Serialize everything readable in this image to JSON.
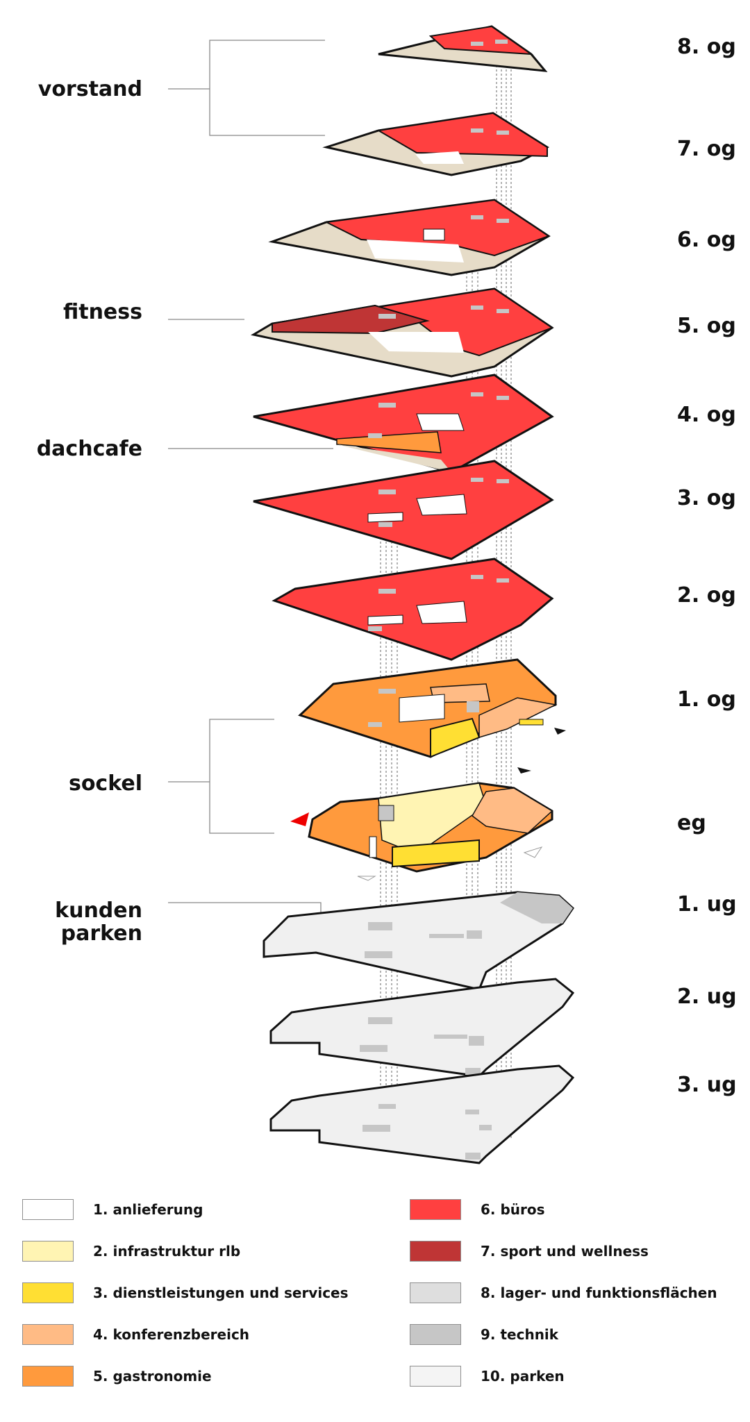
{
  "floors": {
    "og8": "8. og",
    "og7": "7. og",
    "og6": "6. og",
    "og5": "5. og",
    "og4": "4. og",
    "og3": "3. og",
    "og2": "2. og",
    "og1": "1. og",
    "eg": "eg",
    "ug1": "1. ug",
    "ug2": "2. ug",
    "ug3": "3. ug"
  },
  "sections": {
    "vorstand": "vorstand",
    "fitness": "fitness",
    "dachcafe": "dachcafe",
    "sockel": "sockel",
    "kunden_parken": "kunden\nparken"
  },
  "legend": [
    {
      "label": "1. anlieferung",
      "color": "#ffffff"
    },
    {
      "label": "2. infrastruktur rlb",
      "color": "#fff4b3"
    },
    {
      "label": "3. dienstleistungen und services",
      "color": "#ffdf33"
    },
    {
      "label": "4. konferenzbereich",
      "color": "#ffbb85"
    },
    {
      "label": "5. gastronomie",
      "color": "#ff9a3d"
    },
    {
      "label": "6. büros",
      "color": "#ff4040"
    },
    {
      "label": "7. sport und wellness",
      "color": "#bf3535"
    },
    {
      "label": "8. lager- und funktionsflächen",
      "color": "#dedede"
    },
    {
      "label": "9. technik",
      "color": "#c6c6c6"
    },
    {
      "label": "10. parken",
      "color": "#f4f4f4"
    }
  ],
  "colors": {
    "red_office": "#ff4040",
    "dark_red": "#bf3535",
    "beige_terrace": "#e6dcc8",
    "orange": "#ff9a3d",
    "light_orange": "#ffbb85",
    "yellow": "#ffdf33",
    "pale_yellow": "#fff4b3",
    "parking_grey": "#f0f0f0",
    "tech_grey": "#c6c6c6",
    "outline": "#111111"
  }
}
